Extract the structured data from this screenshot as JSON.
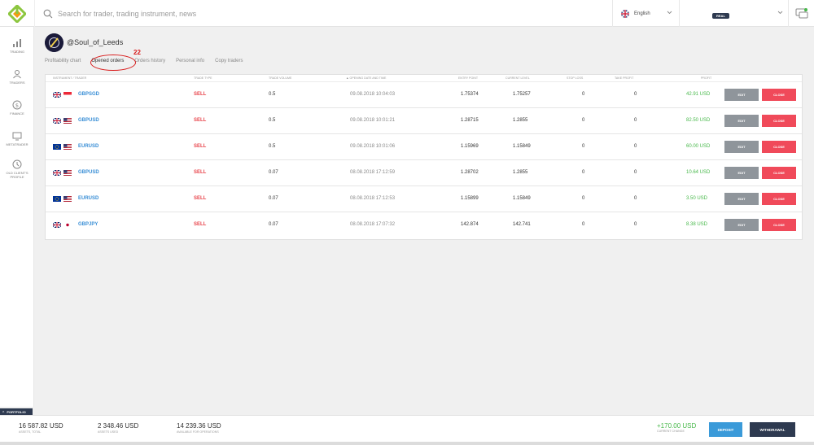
{
  "search": {
    "placeholder": "Search for trader, trading instrument, news"
  },
  "language": {
    "label": "English"
  },
  "account": {
    "badge": "REAL"
  },
  "sidebar": {
    "items": [
      {
        "label": "TRADING",
        "icon": "chart-bars-icon"
      },
      {
        "label": "TRADERS",
        "icon": "user-icon"
      },
      {
        "label": "FINANCE",
        "icon": "dollar-icon"
      },
      {
        "label": "METATRADER",
        "icon": "monitor-icon"
      },
      {
        "label": "OLD CLIENT'S PROFILE",
        "icon": "history-icon"
      }
    ]
  },
  "profile": {
    "username": "@Soul_of_Leeds"
  },
  "tabs": [
    "Profitability chart",
    "Opened orders",
    "Orders history",
    "Personal info",
    "Copy traders"
  ],
  "annotation": {
    "number": "22"
  },
  "orders": {
    "headers": [
      "INSTRUMENT / TRADER",
      "TRADE TYPE",
      "TRADE VOLUME",
      "▲ OPENING DATE AND TIME",
      "ENTRY POINT",
      "CURRENT LEVEL",
      "STOP LOSS",
      "TAKE PROFIT",
      "PROFIT"
    ],
    "edit_label": "EDIT",
    "close_label": "CLOSE",
    "rows": [
      {
        "flags": [
          "gb",
          "sg"
        ],
        "symbol": "GBPSGD",
        "type": "SELL",
        "volume": "0.5",
        "opened": "09.08.2018 10:04:03",
        "entry": "1.75374",
        "current": "1.75257",
        "sl": "0",
        "tp": "0",
        "profit": "42.91 USD"
      },
      {
        "flags": [
          "gb",
          "us"
        ],
        "symbol": "GBPUSD",
        "type": "SELL",
        "volume": "0.5",
        "opened": "09.08.2018 10:01:21",
        "entry": "1.28715",
        "current": "1.2855",
        "sl": "0",
        "tp": "0",
        "profit": "82.50 USD"
      },
      {
        "flags": [
          "eu",
          "us"
        ],
        "symbol": "EURUSD",
        "type": "SELL",
        "volume": "0.5",
        "opened": "09.08.2018 10:01:06",
        "entry": "1.15969",
        "current": "1.15849",
        "sl": "0",
        "tp": "0",
        "profit": "60.00 USD"
      },
      {
        "flags": [
          "gb",
          "us"
        ],
        "symbol": "GBPUSD",
        "type": "SELL",
        "volume": "0.07",
        "opened": "08.08.2018 17:12:59",
        "entry": "1.28702",
        "current": "1.2855",
        "sl": "0",
        "tp": "0",
        "profit": "10.64 USD"
      },
      {
        "flags": [
          "eu",
          "us"
        ],
        "symbol": "EURUSD",
        "type": "SELL",
        "volume": "0.07",
        "opened": "08.08.2018 17:12:53",
        "entry": "1.15899",
        "current": "1.15849",
        "sl": "0",
        "tp": "0",
        "profit": "3.50 USD"
      },
      {
        "flags": [
          "gb",
          "jp"
        ],
        "symbol": "GBPJPY",
        "type": "SELL",
        "volume": "0.07",
        "opened": "08.08.2018 17:07:32",
        "entry": "142.874",
        "current": "142.741",
        "sl": "0",
        "tp": "0",
        "profit": "8.38 USD"
      }
    ]
  },
  "portfolio": {
    "tab_label": "PORTFOLIO",
    "stats": [
      {
        "value": "16 587.82 USD",
        "label": "ASSETS, TOTAL"
      },
      {
        "value": "2 348.46 USD",
        "label": "ASSETS USED"
      },
      {
        "value": "14 239.36 USD",
        "label": "AVAILABLE FOR OPERATIONS"
      }
    ],
    "change": {
      "value": "+170.00 USD",
      "label": "CURRENT CHANGE"
    },
    "deposit_label": "DEPOSIT",
    "withdraw_label": "WITHDRAWAL"
  },
  "colors": {
    "accent": "#3a9ad9",
    "sell": "#e8434a",
    "profit": "#47b84a",
    "dark": "#2e3a50",
    "annotation": "#d81b1b"
  }
}
